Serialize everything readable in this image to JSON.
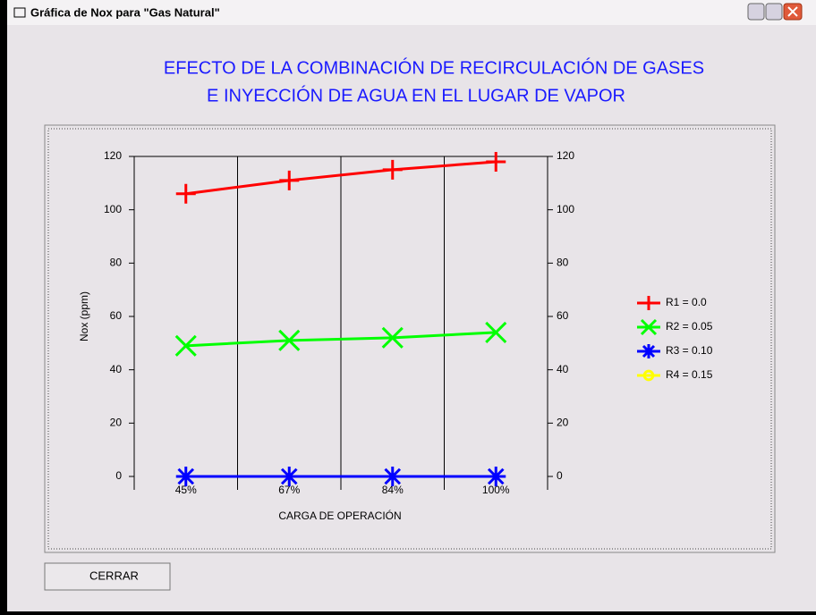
{
  "window": {
    "title": "Gráfica de Nox para \"Gas Natural\""
  },
  "chart_data": {
    "type": "line",
    "title": [
      "EFECTO DE LA COMBINACIÓN DE RECIRCULACIÓN DE GASES",
      "E INYECCIÓN DE AGUA EN EL LUGAR DE VAPOR"
    ],
    "x_label": "CARGA DE OPERACIÓN",
    "y_label": "Nox (ppm)",
    "categories": [
      "45%",
      "67%",
      "84%",
      "100%"
    ],
    "ylim": [
      0,
      120
    ],
    "yticks": [
      0,
      20,
      40,
      60,
      80,
      100,
      120
    ],
    "y2lim": [
      0,
      120
    ],
    "y2ticks": [
      0,
      20,
      40,
      60,
      80,
      100,
      120
    ],
    "grid": "x",
    "legend": "right",
    "series": [
      {
        "name": "R1 = 0.0",
        "color": "#ff0000",
        "marker": "plus",
        "values": [
          106,
          111,
          115,
          118
        ]
      },
      {
        "name": "R2 = 0.05",
        "color": "#00ff00",
        "marker": "x",
        "values": [
          49,
          51,
          52,
          54
        ]
      },
      {
        "name": "R3 = 0.10",
        "color": "#0000ff",
        "marker": "star",
        "values": [
          0,
          0,
          0,
          0
        ]
      },
      {
        "name": "R4 = 0.15",
        "color": "#ffff00",
        "marker": "circle",
        "values": [
          null,
          null,
          null,
          null
        ]
      }
    ]
  },
  "button": {
    "label": "CERRAR"
  }
}
